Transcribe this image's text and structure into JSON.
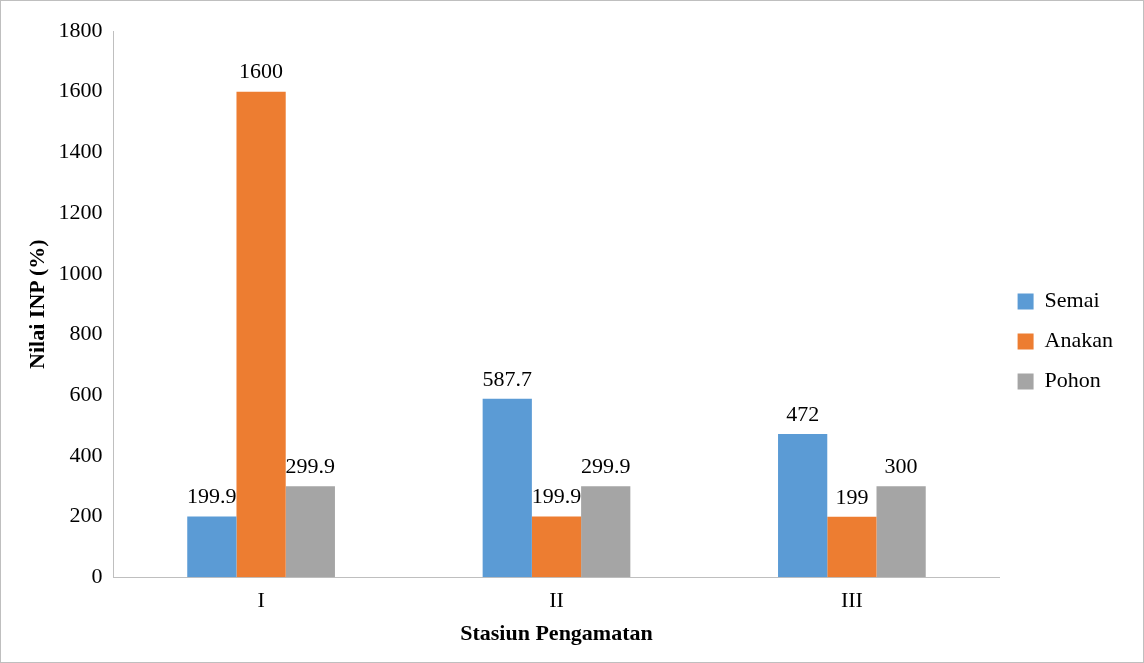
{
  "chart_data": {
    "type": "bar",
    "xlabel": "Stasiun Pengamatan",
    "ylabel": "Nilai INP (%)",
    "categories": [
      "I",
      "II",
      "III"
    ],
    "series": [
      {
        "name": "Semai",
        "color": "#5b9bd5",
        "values": [
          199.9,
          587.7,
          472
        ]
      },
      {
        "name": "Anakan",
        "color": "#ed7d31",
        "values": [
          1600,
          199.9,
          199
        ]
      },
      {
        "name": "Pohon",
        "color": "#a5a5a5",
        "values": [
          299.9,
          299.9,
          300
        ]
      }
    ],
    "ylim": [
      0,
      1800
    ],
    "yticks": [
      0,
      200,
      400,
      600,
      800,
      1000,
      1200,
      1400,
      1600,
      1800
    ],
    "grid": false,
    "legend": "right",
    "data_labels": true
  }
}
